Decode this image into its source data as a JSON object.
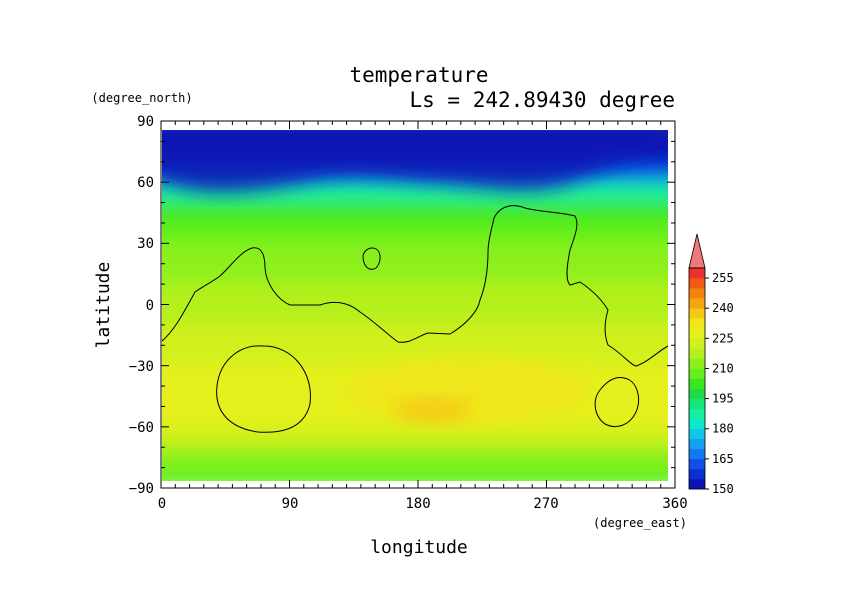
{
  "chart_data": {
    "type": "heatmap",
    "title": "temperature",
    "subtitle": "Ls = 242.89430 degree",
    "xlabel": "longitude",
    "ylabel": "latitude",
    "xunit": "(degree_east)",
    "yunit": "(degree_north)",
    "xlim": [
      0,
      360
    ],
    "ylim": [
      -90,
      90
    ],
    "xticks": [
      "0",
      "90",
      "180",
      "270",
      "360"
    ],
    "yticks": [
      "90",
      "60",
      "30",
      "0",
      "−30",
      "−60",
      "−90"
    ],
    "colorbar": {
      "levels": [
        150,
        155,
        160,
        165,
        170,
        175,
        180,
        185,
        190,
        195,
        200,
        205,
        210,
        215,
        220,
        225,
        230,
        235,
        240,
        245,
        250,
        255,
        260
      ],
      "labels": [
        "150",
        "165",
        "180",
        "195",
        "210",
        "225",
        "240",
        "255"
      ],
      "colors": [
        "#0a14b4",
        "#0a30d2",
        "#1050e6",
        "#1478f0",
        "#14a0f0",
        "#10c8e6",
        "#10e6c8",
        "#14f0a0",
        "#14e678",
        "#1edc46",
        "#3ce61e",
        "#64f01e",
        "#8cf01e",
        "#b4f01e",
        "#d2f01e",
        "#e6f01e",
        "#f0e61e",
        "#f5c814",
        "#f5a50f",
        "#f5820f",
        "#f05a14",
        "#eb3232",
        "#f07878"
      ],
      "extend": "max"
    },
    "z_profile_by_latitude": {
      "lat": [
        85,
        75,
        65,
        55,
        45,
        35,
        25,
        15,
        5,
        -5,
        -15,
        -25,
        -35,
        -45,
        -55,
        -65,
        -75,
        -85
      ],
      "temperature": [
        150,
        152,
        160,
        185,
        200,
        205,
        210,
        213,
        215,
        217,
        220,
        224,
        226,
        227,
        226,
        222,
        212,
        205
      ]
    },
    "warm_cores": [
      {
        "lon": 215,
        "lat": -42,
        "value": 232
      },
      {
        "lon": 190,
        "lat": -52,
        "value": 236
      }
    ]
  }
}
